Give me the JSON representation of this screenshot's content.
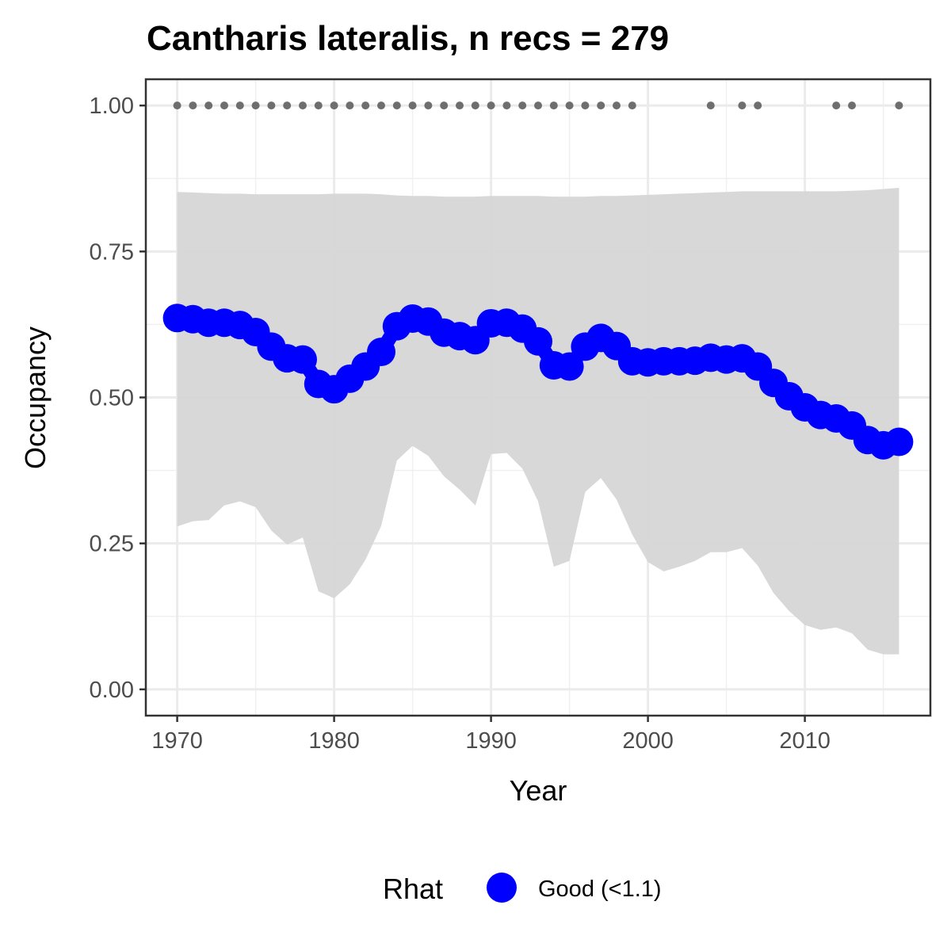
{
  "chart_data": {
    "type": "line",
    "title": "Cantharis lateralis, n recs = 279",
    "xlabel": "Year",
    "ylabel": "Occupancy",
    "xlim": [
      1968,
      2018
    ],
    "ylim": [
      -0.045,
      1.045
    ],
    "x_ticks": [
      1970,
      1980,
      1990,
      2000,
      2010
    ],
    "x_tick_labels": [
      "1970",
      "1980",
      "1990",
      "2000",
      "2010"
    ],
    "y_ticks": [
      0,
      0.25,
      0.5,
      0.75,
      1.0
    ],
    "y_tick_labels": [
      "0.00",
      "0.25",
      "0.50",
      "0.75",
      "1.00"
    ],
    "grid": true,
    "years": [
      1970,
      1971,
      1972,
      1973,
      1974,
      1975,
      1976,
      1977,
      1978,
      1979,
      1980,
      1981,
      1982,
      1983,
      1984,
      1985,
      1986,
      1987,
      1988,
      1989,
      1990,
      1991,
      1992,
      1993,
      1994,
      1995,
      1996,
      1997,
      1998,
      1999,
      2000,
      2001,
      2002,
      2003,
      2004,
      2005,
      2006,
      2007,
      2008,
      2009,
      2010,
      2011,
      2012,
      2013,
      2014,
      2015,
      2016
    ],
    "series": [
      {
        "name": "Good (<1.1)",
        "color": "#0000ff",
        "values": [
          0.636,
          0.634,
          0.628,
          0.628,
          0.624,
          0.612,
          0.587,
          0.567,
          0.565,
          0.523,
          0.514,
          0.532,
          0.553,
          0.578,
          0.622,
          0.635,
          0.63,
          0.611,
          0.605,
          0.598,
          0.627,
          0.628,
          0.618,
          0.596,
          0.555,
          0.553,
          0.587,
          0.602,
          0.588,
          0.562,
          0.56,
          0.562,
          0.562,
          0.563,
          0.568,
          0.565,
          0.567,
          0.553,
          0.525,
          0.502,
          0.483,
          0.47,
          0.464,
          0.452,
          0.427,
          0.418,
          0.424
        ]
      }
    ],
    "ci_upper": [
      0.852,
      0.851,
      0.85,
      0.849,
      0.849,
      0.848,
      0.848,
      0.848,
      0.848,
      0.848,
      0.849,
      0.849,
      0.849,
      0.848,
      0.846,
      0.845,
      0.845,
      0.844,
      0.844,
      0.844,
      0.845,
      0.845,
      0.845,
      0.845,
      0.844,
      0.844,
      0.844,
      0.845,
      0.845,
      0.846,
      0.847,
      0.848,
      0.849,
      0.85,
      0.851,
      0.852,
      0.853,
      0.853,
      0.853,
      0.853,
      0.853,
      0.853,
      0.853,
      0.854,
      0.855,
      0.857,
      0.859
    ],
    "ci_lower": [
      0.279,
      0.288,
      0.29,
      0.315,
      0.322,
      0.312,
      0.272,
      0.248,
      0.26,
      0.168,
      0.156,
      0.18,
      0.222,
      0.28,
      0.392,
      0.417,
      0.4,
      0.365,
      0.342,
      0.315,
      0.403,
      0.405,
      0.378,
      0.322,
      0.21,
      0.22,
      0.338,
      0.362,
      0.325,
      0.265,
      0.218,
      0.202,
      0.21,
      0.22,
      0.235,
      0.235,
      0.242,
      0.212,
      0.165,
      0.134,
      0.11,
      0.102,
      0.106,
      0.096,
      0.068,
      0.06,
      0.06
    ],
    "ci_color": "#d6d6d6",
    "record_years": [
      1970,
      1971,
      1972,
      1973,
      1974,
      1975,
      1976,
      1977,
      1978,
      1979,
      1980,
      1981,
      1982,
      1983,
      1984,
      1985,
      1986,
      1987,
      1988,
      1989,
      1990,
      1991,
      1992,
      1993,
      1994,
      1995,
      1996,
      1997,
      1998,
      1999,
      2004,
      2006,
      2007,
      2012,
      2013,
      2016
    ],
    "record_value": 1.0,
    "record_color": "#6e6e6e",
    "legend": {
      "title": "Rhat",
      "entries": [
        {
          "label": "Good (<1.1)",
          "color": "#0000ff"
        }
      ],
      "position": "bottom"
    }
  }
}
